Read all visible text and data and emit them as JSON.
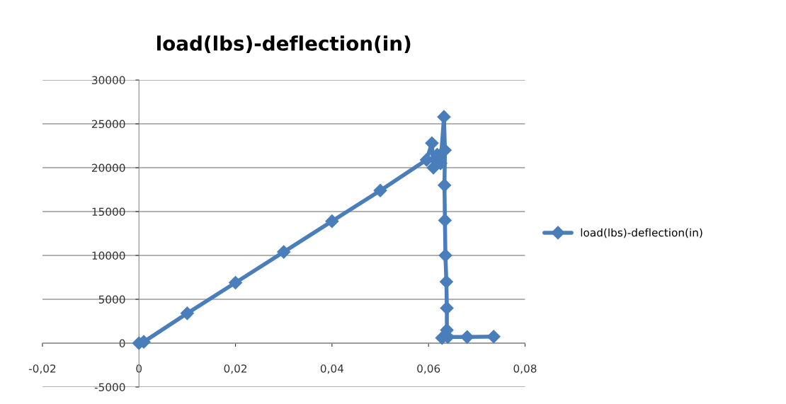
{
  "chart_data": {
    "type": "line",
    "title": "load(lbs)-deflection(in)",
    "series": [
      {
        "name": "load(lbs)-deflection(in)",
        "color": "#4a7ebb",
        "x": [
          0,
          0.001,
          0.01,
          0.02,
          0.03,
          0.04,
          0.05,
          0.0596,
          0.0607,
          0.061,
          0.0618,
          0.0625,
          0.0632,
          0.0634,
          0.0633,
          0.0634,
          0.0635,
          0.0637,
          0.0638,
          0.0638,
          0.0628,
          0.064,
          0.068,
          0.0735
        ],
        "values": [
          0,
          150,
          3400,
          6900,
          10400,
          13900,
          17400,
          20900,
          22800,
          20000,
          21500,
          20500,
          25800,
          22000,
          18000,
          14000,
          10000,
          7000,
          4000,
          1500,
          600,
          700,
          700,
          750
        ]
      }
    ],
    "xlim": [
      -0.02,
      0.08
    ],
    "xticks": [
      {
        "value": -0.02,
        "label": "-0,02"
      },
      0,
      {
        "value": 0.02,
        "label": "0,02"
      },
      {
        "value": 0.04,
        "label": "0,04"
      },
      {
        "value": 0.06,
        "label": "0,06"
      },
      {
        "value": 0.08,
        "label": "0,08"
      }
    ],
    "ylim": [
      -5000,
      30000
    ],
    "yticks": [
      -5000,
      0,
      5000,
      10000,
      15000,
      20000,
      25000,
      30000
    ],
    "grid": "y",
    "legend": "right",
    "marker": "diamond",
    "line_style": "solid"
  }
}
